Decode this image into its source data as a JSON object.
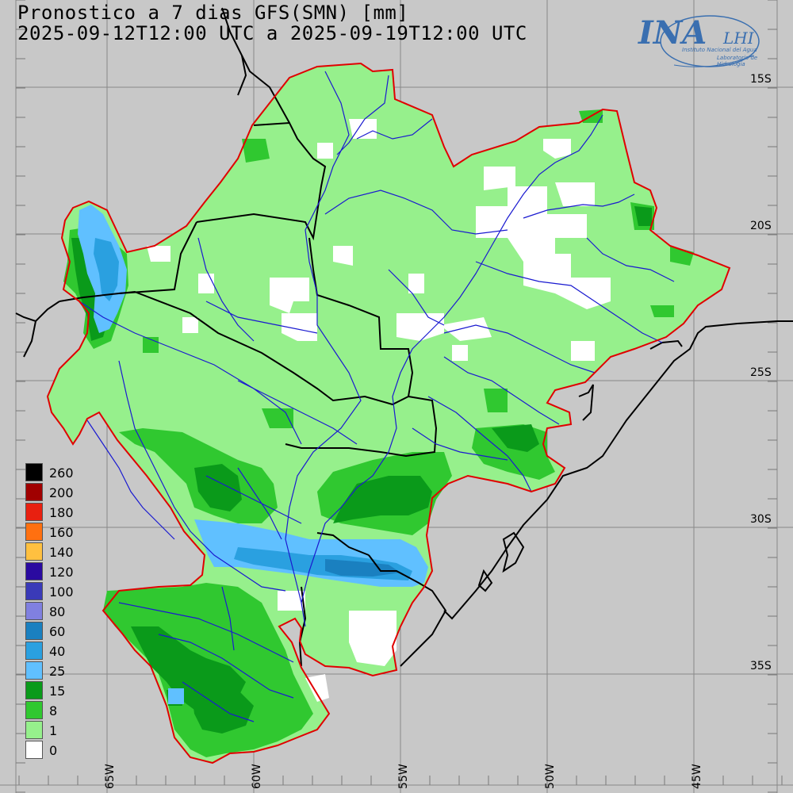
{
  "title": {
    "line1": "Pronostico a 7 dias GFS(SMN) [mm]",
    "line2": "2025-09-12T12:00 UTC a 2025-09-19T12:00 UTC"
  },
  "logo": {
    "main": "INA",
    "side": "LHI",
    "sub1": "Instituto Nacional del Agua",
    "sub2": "Laboratorio de Hidrología"
  },
  "lat_labels": [
    "15S",
    "20S",
    "25S",
    "30S",
    "35S"
  ],
  "lon_labels": [
    "65W",
    "60W",
    "55W",
    "50W",
    "45W"
  ],
  "legend": [
    {
      "label": "260",
      "color": "#000000"
    },
    {
      "label": "200",
      "color": "#a00000"
    },
    {
      "label": "180",
      "color": "#e82010"
    },
    {
      "label": "160",
      "color": "#ff7010"
    },
    {
      "label": "140",
      "color": "#ffc040"
    },
    {
      "label": "120",
      "color": "#2a0aa0"
    },
    {
      "label": "100",
      "color": "#3a3ab8"
    },
    {
      "label": "80",
      "color": "#8080e0"
    },
    {
      "label": "60",
      "color": "#1a80c0"
    },
    {
      "label": "40",
      "color": "#2aa0e0"
    },
    {
      "label": "25",
      "color": "#60c0ff"
    },
    {
      "label": "15",
      "color": "#0a9a1a"
    },
    {
      "label": "8",
      "color": "#30c830"
    },
    {
      "label": "1",
      "color": "#96f08c"
    },
    {
      "label": "0",
      "color": "#ffffff"
    }
  ],
  "colors": {
    "background": "#c8c8c8",
    "basin_outline": "#e00000",
    "rivers": "#1a1ad0",
    "borders": "#000000",
    "grid": "#888888"
  }
}
